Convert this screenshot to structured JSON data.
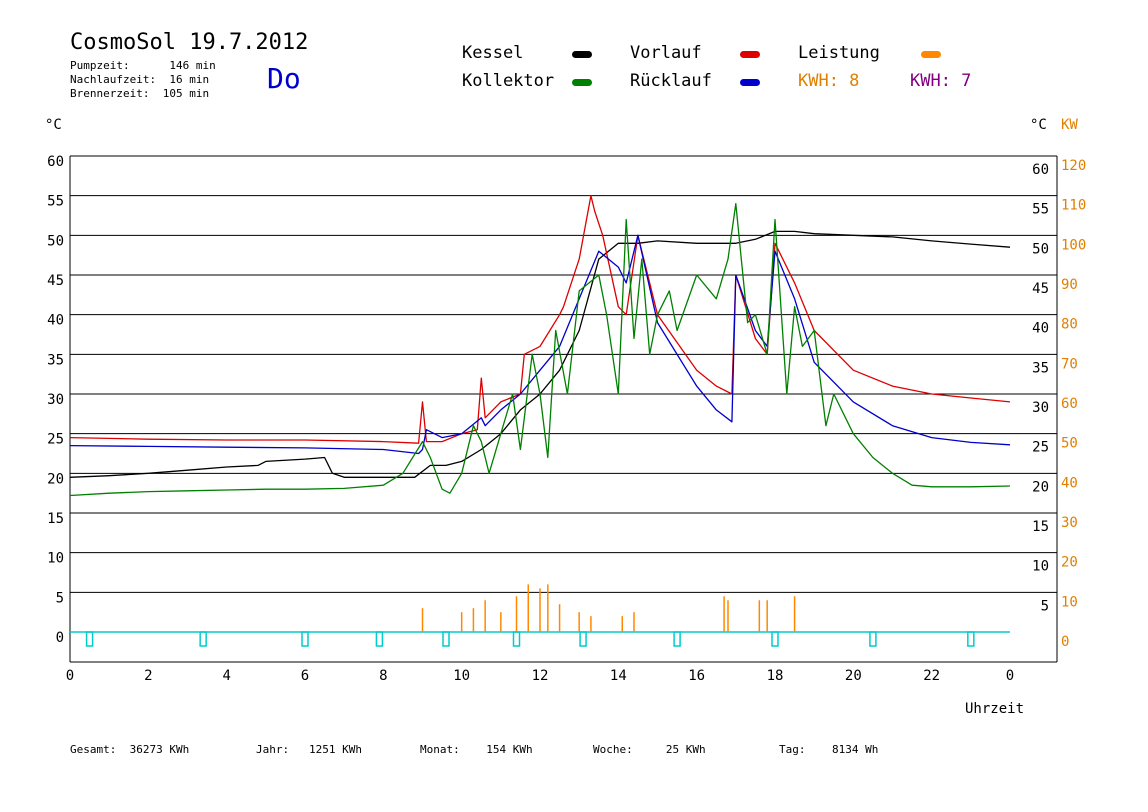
{
  "header": {
    "title": "CosmoSol 19.7.2012",
    "pumpzeit": "Pumpzeit:      146 min",
    "nachlaufzeit": "Nachlaufzeit:  16 min",
    "brennerzeit": "Brennerzeit:  105 min",
    "day": "Do"
  },
  "legend": [
    {
      "label": "Kessel",
      "color": "#000000"
    },
    {
      "label": "Vorlauf",
      "color": "#dd0000"
    },
    {
      "label": "Leistung",
      "color": "#ff8800"
    },
    {
      "label": "Kollektor",
      "color": "#008000"
    },
    {
      "label": "Rücklauf",
      "color": "#0000cc"
    }
  ],
  "kwh": [
    {
      "label": "KWH: 8",
      "color": "#e08000"
    },
    {
      "label": "KWH: 7",
      "color": "#800080"
    }
  ],
  "axis_units": {
    "left": "°C",
    "right_temp": "°C",
    "right_power": "KW",
    "x": "Uhrzeit"
  },
  "footer": {
    "gesamt": "Gesamt:  36273 KWh",
    "jahr": "Jahr:   1251 KWh",
    "monat": "Monat:    154 KWh",
    "woche": "Woche:     25 KWh",
    "tag": "Tag:    8134 Wh"
  },
  "chart_data": {
    "type": "line",
    "title": "CosmoSol 19.7.2012",
    "xlabel": "Uhrzeit",
    "ylabel": "°C",
    "y2label": "KW",
    "xlim": [
      0,
      24
    ],
    "ylim": [
      0,
      60
    ],
    "y2lim": [
      0,
      120
    ],
    "grid": true,
    "legend_position": "top",
    "x_ticks": [
      "0",
      "2",
      "4",
      "6",
      "8",
      "10",
      "12",
      "14",
      "16",
      "18",
      "20",
      "22",
      "0"
    ],
    "y_ticks": [
      "0",
      "5",
      "10",
      "15",
      "20",
      "25",
      "30",
      "35",
      "40",
      "45",
      "50",
      "55",
      "60"
    ],
    "y2_ticks": [
      "0",
      "10",
      "20",
      "30",
      "40",
      "50",
      "60",
      "70",
      "80",
      "90",
      "100",
      "110",
      "120"
    ],
    "series": [
      {
        "name": "Kessel",
        "color": "#000000",
        "x": [
          0,
          1,
          2,
          3,
          4,
          4.8,
          5,
          6,
          6.5,
          6.7,
          7,
          8,
          8.8,
          9.2,
          9.6,
          10,
          10.5,
          11,
          11.5,
          12,
          12.5,
          13,
          13.5,
          14,
          14.5,
          15,
          16,
          16.5,
          17,
          17.5,
          18,
          18.5,
          19,
          20,
          21,
          22,
          23,
          24
        ],
        "y": [
          19.5,
          19.7,
          20,
          20.4,
          20.8,
          21,
          21.5,
          21.8,
          22,
          20,
          19.5,
          19.5,
          19.5,
          21,
          21,
          21.5,
          23,
          25,
          28,
          30,
          33,
          38,
          47,
          49,
          49,
          49.3,
          49,
          49,
          49,
          49.5,
          50.5,
          50.5,
          50.2,
          50,
          49.8,
          49.3,
          48.9,
          48.5
        ]
      },
      {
        "name": "Vorlauf",
        "color": "#dd0000",
        "x": [
          0,
          2,
          4,
          6,
          8,
          8.9,
          9,
          9.1,
          9.5,
          10,
          10.4,
          10.5,
          10.6,
          11,
          11.5,
          11.6,
          12,
          12.5,
          12.6,
          13,
          13.3,
          13.4,
          13.6,
          14,
          14.2,
          14.5,
          15,
          16,
          16.5,
          16.9,
          17,
          17.5,
          17.8,
          18,
          18.5,
          19,
          20,
          21,
          22,
          23,
          24
        ],
        "y": [
          24.5,
          24.3,
          24.2,
          24.2,
          24,
          23.8,
          29,
          24,
          24,
          25,
          25.5,
          32,
          27,
          29,
          30,
          35,
          36,
          40,
          41,
          47,
          55,
          53,
          50,
          41,
          40,
          50,
          40,
          33,
          31,
          30,
          45,
          37,
          35,
          49,
          44,
          38,
          33,
          31,
          30,
          29.5,
          29
        ]
      },
      {
        "name": "Rücklauf",
        "color": "#0000cc",
        "x": [
          0,
          2,
          4,
          6,
          8,
          8.9,
          9,
          9.1,
          9.5,
          10,
          10.5,
          10.6,
          11,
          11.5,
          12,
          12.5,
          13,
          13.5,
          14,
          14.2,
          14.5,
          15,
          16,
          16.5,
          16.9,
          17,
          17.5,
          17.8,
          18,
          18.5,
          19,
          20,
          21,
          22,
          23,
          24
        ],
        "y": [
          23.5,
          23.4,
          23.3,
          23.2,
          23,
          22.5,
          23,
          25.5,
          24.5,
          25,
          27,
          26,
          28,
          30,
          33,
          36,
          42,
          48,
          46,
          44,
          50,
          39,
          31,
          28,
          26.5,
          45,
          38,
          36,
          48,
          42,
          34,
          29,
          26,
          24.5,
          23.9,
          23.6
        ]
      },
      {
        "name": "Kollektor",
        "color": "#008000",
        "x": [
          0,
          1,
          2,
          3,
          4,
          5,
          6,
          7,
          8,
          8.5,
          9,
          9.2,
          9.5,
          9.7,
          10,
          10.3,
          10.5,
          10.7,
          11,
          11.3,
          11.5,
          11.8,
          12,
          12.2,
          12.4,
          12.7,
          13,
          13.5,
          13.7,
          14,
          14.2,
          14.4,
          14.6,
          14.8,
          15,
          15.3,
          15.5,
          16,
          16.5,
          16.8,
          17,
          17.3,
          17.5,
          17.8,
          18,
          18.3,
          18.5,
          18.7,
          19,
          19.3,
          19.5,
          20,
          20.5,
          21,
          21.5,
          22,
          23,
          24
        ],
        "y": [
          17.2,
          17.5,
          17.7,
          17.8,
          17.9,
          18,
          18,
          18.1,
          18.5,
          20,
          24,
          22,
          18,
          17.5,
          20,
          26,
          24,
          20,
          25,
          30,
          23,
          35,
          30,
          22,
          38,
          30,
          43,
          45,
          40,
          30,
          52,
          37,
          47,
          35,
          40,
          43,
          38,
          45,
          42,
          47,
          54,
          39,
          40,
          35,
          52,
          30,
          41,
          36,
          38,
          26,
          30,
          25,
          22,
          20,
          18.5,
          18.3,
          18.3,
          18.4
        ]
      }
    ],
    "bars_leistung_kw": {
      "name": "Leistung",
      "color": "#ff8800",
      "x": [
        9,
        10,
        10.3,
        10.6,
        11,
        11.4,
        11.7,
        12,
        12.2,
        12.5,
        13,
        13.3,
        14.1,
        14.4,
        16.7,
        16.8,
        17.6,
        17.8,
        18.5
      ],
      "y": [
        6,
        5,
        6,
        8,
        5,
        9,
        12,
        11,
        12,
        7,
        5,
        4,
        4,
        5,
        9,
        8,
        8,
        8,
        9
      ]
    },
    "bars_brenner": {
      "name": "Brenner",
      "color": "#00cccc",
      "x": [
        0.5,
        3.4,
        6,
        7.9,
        9.6,
        11.4,
        13.1,
        15.5,
        18,
        20.5,
        23
      ]
    }
  }
}
